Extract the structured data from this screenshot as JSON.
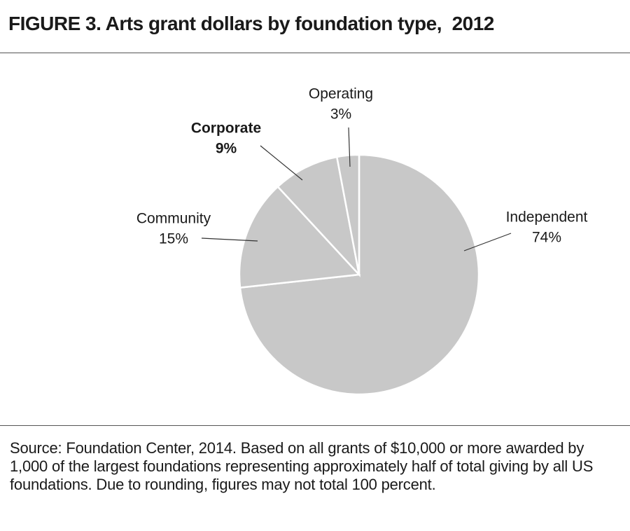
{
  "chart_data": {
    "type": "pie",
    "title": "FIGURE 3. Arts grant dollars by foundation type,  2012",
    "categories": [
      "Independent",
      "Community",
      "Corporate",
      "Operating"
    ],
    "values": [
      74,
      15,
      9,
      3
    ],
    "value_labels": [
      "74%",
      "15%",
      "9%",
      "3%"
    ],
    "color": "#c8c8c8",
    "note": "Source: Foundation Center, 2014. Based on all grants of $10,000 or more awarded by 1,000 of the largest foundations representing approximately half of total giving by all US foundations. Due to rounding, figures may not total 100 percent."
  }
}
